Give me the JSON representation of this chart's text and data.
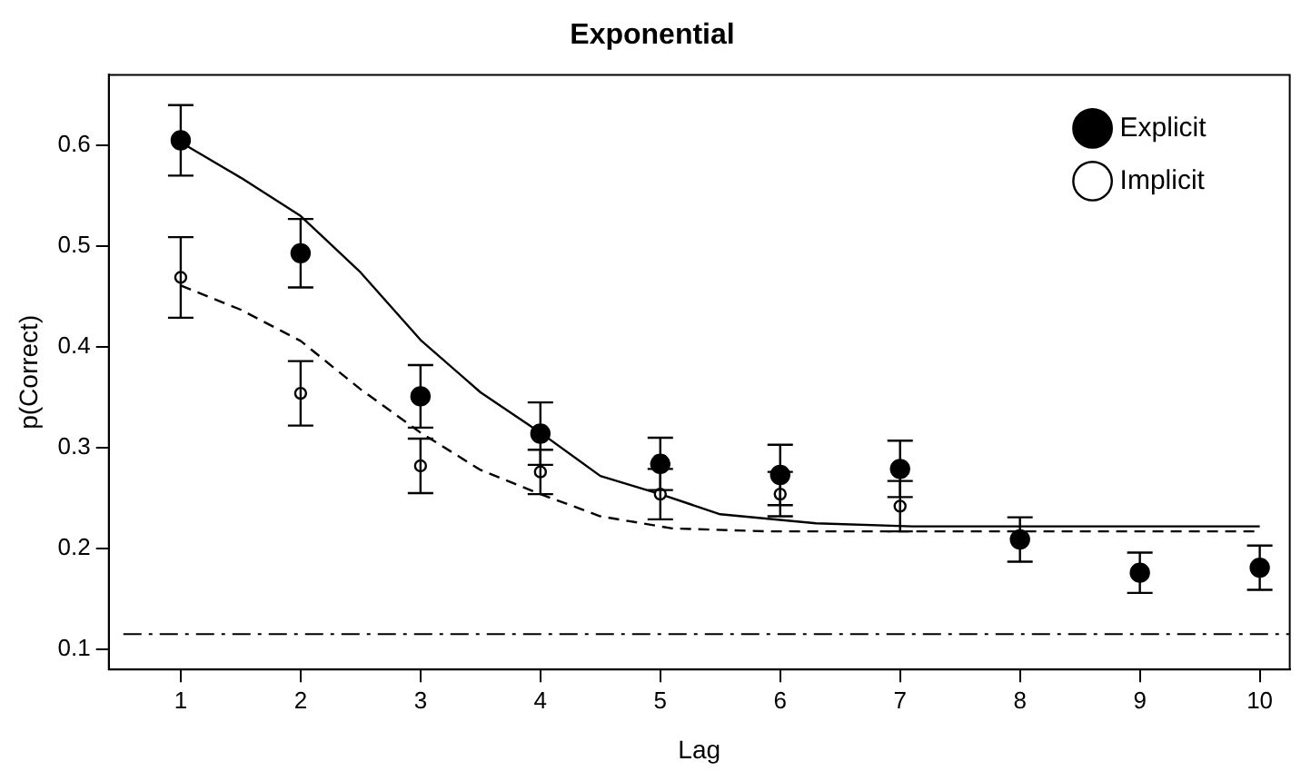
{
  "chart_data": {
    "type": "scatter",
    "title": "Exponential",
    "xlabel": "Lag",
    "ylabel": "p(Correct)",
    "xlim": [
      0.4,
      10.25
    ],
    "ylim": [
      0.08,
      0.67
    ],
    "xticks": [
      1,
      2,
      3,
      4,
      5,
      6,
      7,
      8,
      9,
      10
    ],
    "yticks": [
      0.1,
      0.2,
      0.3,
      0.4,
      0.5,
      0.6
    ],
    "grid": false,
    "legend": "top right",
    "series": [
      {
        "name": "Explicit",
        "color": "#000000",
        "marker": "circle",
        "x": [
          1,
          2,
          3,
          4,
          5,
          6,
          7,
          8,
          9,
          10
        ],
        "values": [
          0.605,
          0.493,
          0.351,
          0.314,
          0.284,
          0.273,
          0.279,
          0.209,
          0.176,
          0.181
        ],
        "errors": [
          0.035,
          0.034,
          0.031,
          0.031,
          0.026,
          0.03,
          0.028,
          0.022,
          0.02,
          0.022
        ]
      },
      {
        "name": "Implicit",
        "color": "#000000",
        "marker": "circle",
        "x": [
          1,
          2,
          3,
          4,
          5,
          6,
          7
        ],
        "values": [
          0.469,
          0.354,
          0.282,
          0.276,
          0.254,
          0.254,
          0.242
        ],
        "errors": [
          0.04,
          0.032,
          0.027,
          0.022,
          0.025,
          0.022,
          0.025
        ]
      },
      {
        "type": "line",
        "color": "#000000",
        "line_style": "solid",
        "marker": "none",
        "x": [
          1,
          1.5,
          2,
          2.5,
          3,
          3.5,
          4,
          4.5,
          5,
          5.5,
          6.3,
          7.1,
          10
        ],
        "values": [
          0.603,
          0.568,
          0.53,
          0.474,
          0.407,
          0.355,
          0.315,
          0.272,
          0.254,
          0.234,
          0.225,
          0.222,
          0.222
        ]
      },
      {
        "type": "line",
        "color": "#000000",
        "line_style": "dashed",
        "marker": "none",
        "x": [
          1,
          1.5,
          2,
          2.5,
          3,
          3.5,
          4,
          4.5,
          5.1,
          5.9,
          10
        ],
        "values": [
          0.461,
          0.437,
          0.406,
          0.358,
          0.315,
          0.278,
          0.254,
          0.232,
          0.22,
          0.217,
          0.217
        ]
      }
    ],
    "ref_lines": [
      {
        "axis": "y",
        "value": 0.115,
        "line_style": "dashdot"
      }
    ]
  }
}
